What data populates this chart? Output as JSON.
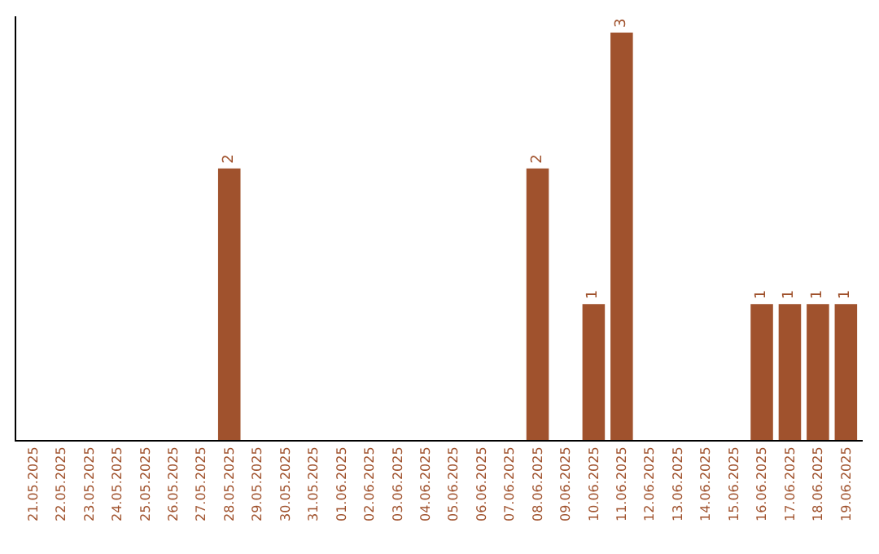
{
  "chart_data": {
    "type": "bar",
    "categories": [
      "21.05.2025",
      "22.05.2025",
      "23.05.2025",
      "24.05.2025",
      "25.05.2025",
      "26.05.2025",
      "27.05.2025",
      "28.05.2025",
      "29.05.2025",
      "30.05.2025",
      "31.05.2025",
      "01.06.2025",
      "02.06.2025",
      "03.06.2025",
      "04.06.2025",
      "05.06.2025",
      "06.06.2025",
      "07.06.2025",
      "08.06.2025",
      "09.06.2025",
      "10.06.2025",
      "11.06.2025",
      "12.06.2025",
      "13.06.2025",
      "14.06.2025",
      "15.06.2025",
      "16.06.2025",
      "17.06.2025",
      "18.06.2025",
      "19.06.2025"
    ],
    "values": [
      0,
      0,
      0,
      0,
      0,
      0,
      0,
      2,
      0,
      0,
      0,
      0,
      0,
      0,
      0,
      0,
      0,
      0,
      2,
      0,
      1,
      3,
      0,
      0,
      0,
      0,
      1,
      1,
      1,
      1
    ],
    "value_labels": [
      null,
      null,
      null,
      null,
      null,
      null,
      null,
      "2",
      null,
      null,
      null,
      null,
      null,
      null,
      null,
      null,
      null,
      null,
      "2",
      null,
      "1",
      "3",
      null,
      null,
      null,
      null,
      "1",
      "1",
      "1",
      "1"
    ],
    "color": "#a0522d"
  }
}
